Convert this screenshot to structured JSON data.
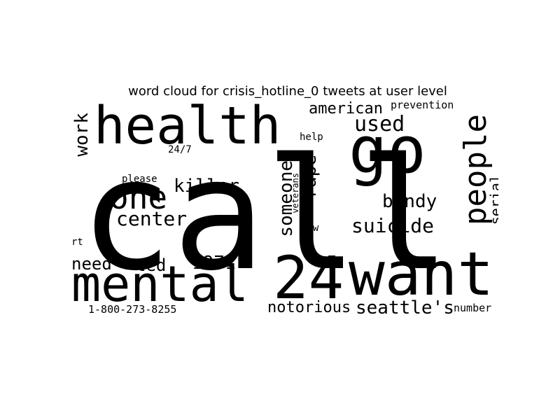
{
  "figure": {
    "title": "word cloud for crisis_hotline_0 tweets at user level",
    "word_color": "#000000",
    "background_color": "#ffffff"
  },
  "words": [
    {
      "text": "call",
      "orientation": "horizontal"
    },
    {
      "text": "go",
      "orientation": "horizontal"
    },
    {
      "text": "health",
      "orientation": "horizontal"
    },
    {
      "text": "mental",
      "orientation": "horizontal"
    },
    {
      "text": "24",
      "orientation": "horizontal"
    },
    {
      "text": "want",
      "orientation": "horizontal"
    },
    {
      "text": "people",
      "orientation": "vertical"
    },
    {
      "text": "one",
      "orientation": "horizontal"
    },
    {
      "text": "american",
      "orientation": "horizontal"
    },
    {
      "text": "prevention",
      "orientation": "horizontal"
    },
    {
      "text": "used",
      "orientation": "horizontal"
    },
    {
      "text": "work",
      "orientation": "vertical"
    },
    {
      "text": "24/7",
      "orientation": "horizontal"
    },
    {
      "text": "help",
      "orientation": "horizontal"
    },
    {
      "text": "killer",
      "orientation": "horizontal"
    },
    {
      "text": "please",
      "orientation": "horizontal"
    },
    {
      "text": "someone",
      "orientation": "vertical"
    },
    {
      "text": "rape",
      "orientation": "vertical"
    },
    {
      "text": "veterans",
      "orientation": "vertical"
    },
    {
      "text": "bundy",
      "orientation": "horizontal"
    },
    {
      "text": "serial",
      "orientation": "vertical"
    },
    {
      "text": "center",
      "orientation": "horizontal"
    },
    {
      "text": "suicide",
      "orientation": "horizontal"
    },
    {
      "text": "new",
      "orientation": "horizontal"
    },
    {
      "text": "rt",
      "orientation": "horizontal"
    },
    {
      "text": "need",
      "orientation": "horizontal"
    },
    {
      "text": "ted",
      "orientation": "horizontal"
    },
    {
      "text": "1971",
      "orientation": "horizontal"
    },
    {
      "text": "notorious",
      "orientation": "horizontal"
    },
    {
      "text": "seattle's",
      "orientation": "horizontal"
    },
    {
      "text": "number",
      "orientation": "horizontal"
    },
    {
      "text": "1-800-273-8255",
      "orientation": "horizontal"
    }
  ]
}
